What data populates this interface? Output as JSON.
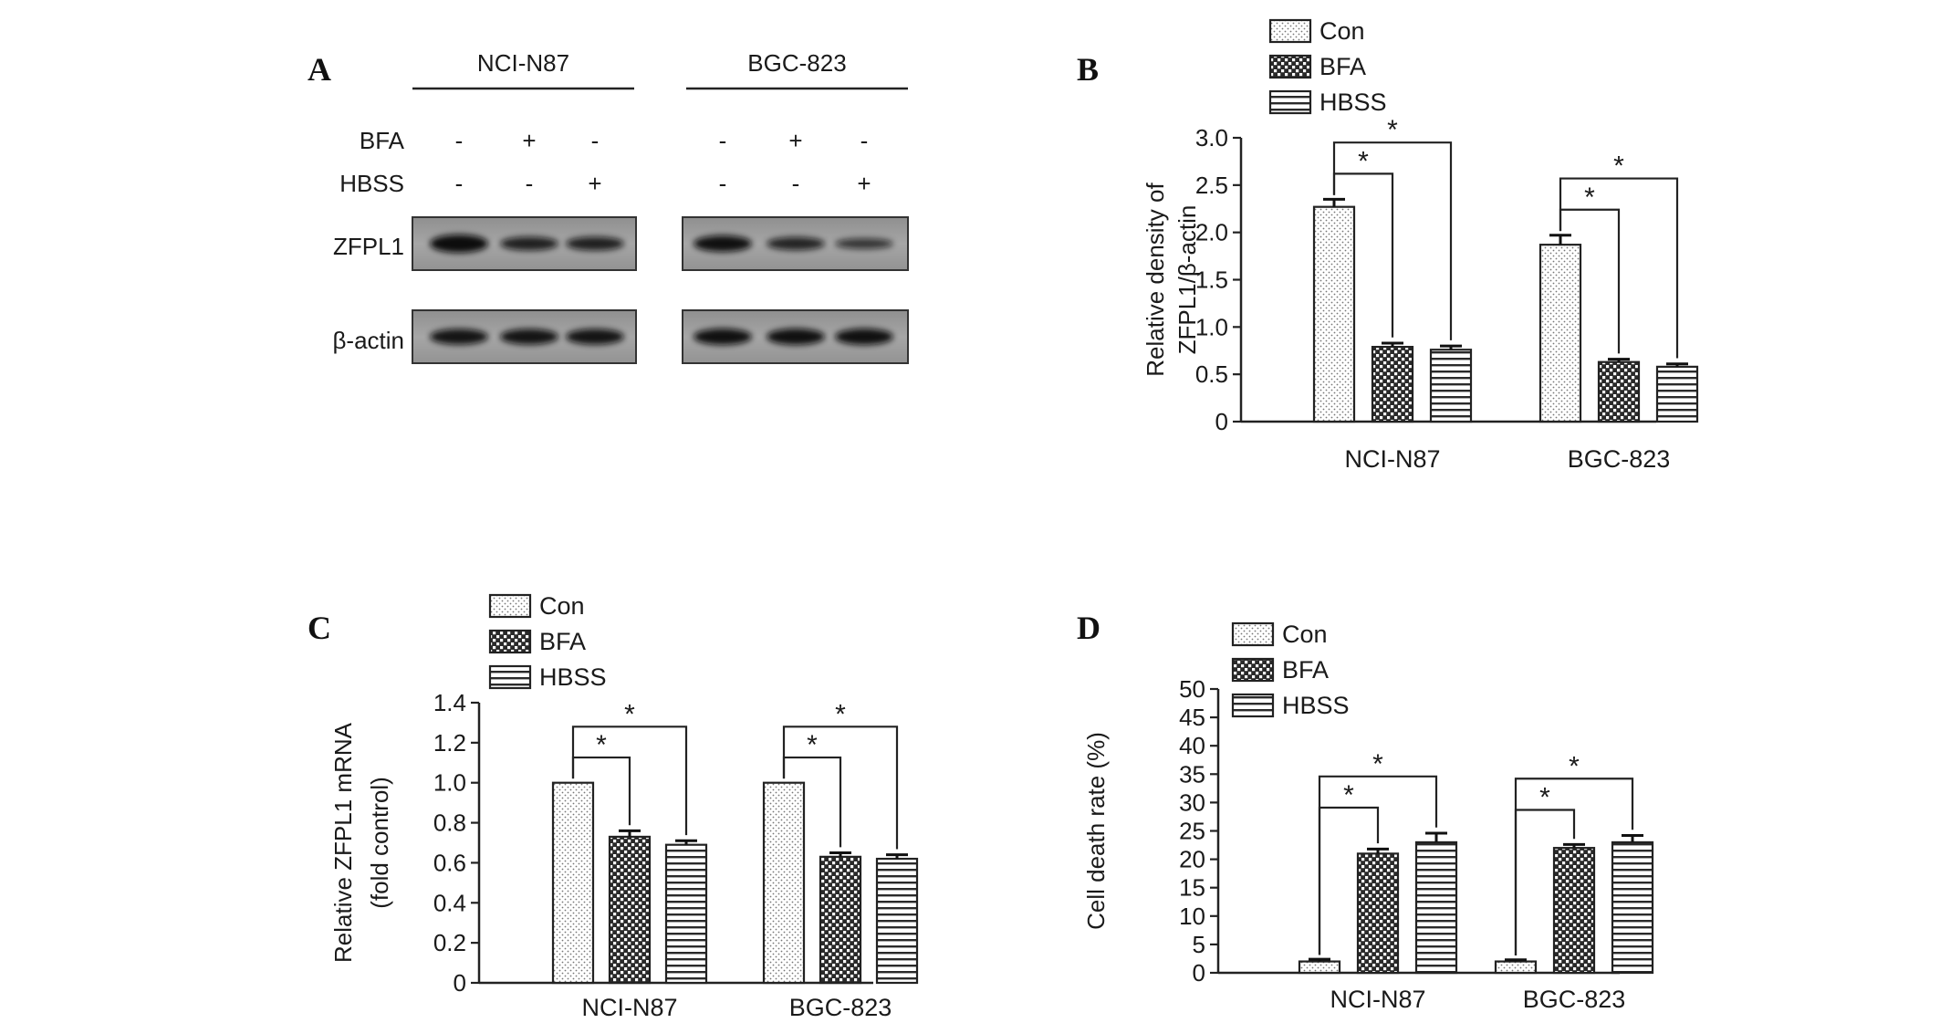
{
  "figure": {
    "panels": [
      "A",
      "B",
      "C",
      "D"
    ]
  },
  "blot": {
    "cell_lines": [
      "NCI-N87",
      "BGC-823"
    ],
    "treatment_rows": [
      {
        "label": "BFA",
        "marks": [
          [
            "-",
            "+",
            "-"
          ],
          [
            "-",
            "+",
            "-"
          ]
        ]
      },
      {
        "label": "HBSS",
        "marks": [
          [
            "-",
            "-",
            "+"
          ],
          [
            "-",
            "-",
            "+"
          ]
        ]
      }
    ],
    "bands": [
      {
        "label": "ZFPL1",
        "intensity": [
          [
            1.0,
            0.65,
            0.65
          ],
          [
            0.85,
            0.6,
            0.4
          ]
        ]
      },
      {
        "label": "β-actin",
        "intensity": [
          [
            0.8,
            0.8,
            0.8
          ],
          [
            0.85,
            0.85,
            0.85
          ]
        ]
      }
    ]
  },
  "chart_data": [
    {
      "panel": "B",
      "type": "bar",
      "categories": [
        "NCI-N87",
        "BGC-823"
      ],
      "series": [
        {
          "name": "Con",
          "values": [
            2.27,
            1.87
          ],
          "errors": [
            0.08,
            0.1
          ],
          "pattern": "dots"
        },
        {
          "name": "BFA",
          "values": [
            0.79,
            0.63
          ],
          "errors": [
            0.04,
            0.03
          ],
          "pattern": "check"
        },
        {
          "name": "HBSS",
          "values": [
            0.76,
            0.58
          ],
          "errors": [
            0.04,
            0.03
          ],
          "pattern": "hlines"
        }
      ],
      "ylabel": [
        "Relative density of",
        "ZFPL1/β-actin"
      ],
      "ylim": [
        0,
        3.0
      ],
      "yticks": [
        "0",
        "0.5",
        "1.0",
        "1.5",
        "2.0",
        "2.5",
        "3.0"
      ],
      "annotations": [
        "*",
        "*",
        "*",
        "*"
      ],
      "legend_position": "top"
    },
    {
      "panel": "C",
      "type": "bar",
      "categories": [
        "NCI-N87",
        "BGC-823"
      ],
      "series": [
        {
          "name": "Con",
          "values": [
            1.0,
            1.0
          ],
          "errors": [
            0,
            0
          ],
          "pattern": "dots"
        },
        {
          "name": "BFA",
          "values": [
            0.73,
            0.63
          ],
          "errors": [
            0.03,
            0.02
          ],
          "pattern": "check"
        },
        {
          "name": "HBSS",
          "values": [
            0.69,
            0.62
          ],
          "errors": [
            0.02,
            0.02
          ],
          "pattern": "hlines"
        }
      ],
      "ylabel": [
        "Relative ZFPL1 mRNA",
        "(fold control)"
      ],
      "ylim": [
        0,
        1.4
      ],
      "yticks": [
        "0",
        "0.2",
        "0.4",
        "0.6",
        "0.8",
        "1.0",
        "1.2",
        "1.4"
      ],
      "annotations": [
        "*",
        "*",
        "*",
        "*"
      ],
      "legend_position": "top"
    },
    {
      "panel": "D",
      "type": "bar",
      "categories": [
        "NCI-N87",
        "BGC-823"
      ],
      "series": [
        {
          "name": "Con",
          "values": [
            2,
            2
          ],
          "errors": [
            0.4,
            0.3
          ],
          "pattern": "dots"
        },
        {
          "name": "BFA",
          "values": [
            21,
            22
          ],
          "errors": [
            0.8,
            0.6
          ],
          "pattern": "check"
        },
        {
          "name": "HBSS",
          "values": [
            23,
            23
          ],
          "errors": [
            1.6,
            1.2
          ],
          "pattern": "hlines"
        }
      ],
      "ylabel": [
        "Cell death rate (%)"
      ],
      "ylim": [
        0,
        50
      ],
      "yticks": [
        "0",
        "5",
        "10",
        "15",
        "20",
        "25",
        "30",
        "35",
        "40",
        "45",
        "50"
      ],
      "annotations": [
        "*",
        "*",
        "*",
        "*"
      ],
      "legend_position": "top"
    }
  ]
}
